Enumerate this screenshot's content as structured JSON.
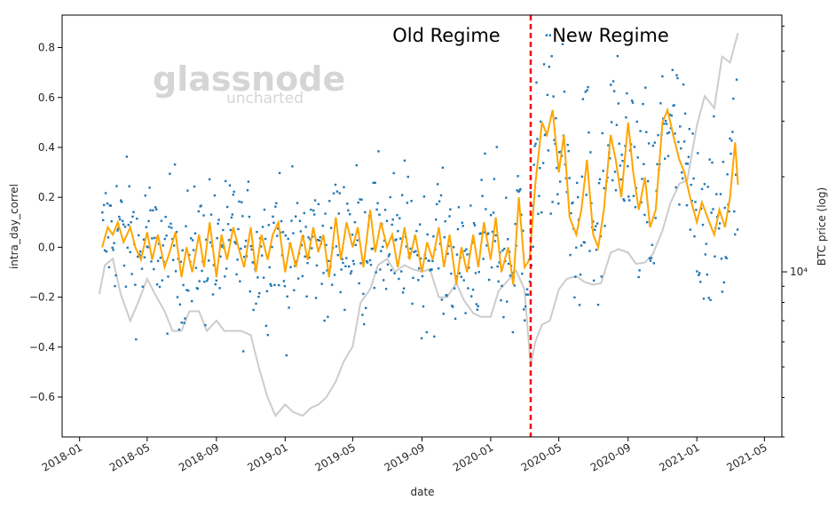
{
  "chart_data": {
    "type": "scatter",
    "xlabel": "date",
    "ylabel": "intra_day_correl",
    "y2label": "BTC price (log)",
    "ylim": [
      -0.76,
      0.93
    ],
    "yticks": [
      "0.8",
      "0.6",
      "0.4",
      "0.2",
      "0.0",
      "−0.2",
      "−0.4",
      "−0.6"
    ],
    "ytick_values": [
      0.8,
      0.6,
      0.4,
      0.2,
      0.0,
      -0.2,
      -0.4,
      -0.6
    ],
    "xticks": [
      "2018-01",
      "2018-05",
      "2018-09",
      "2019-01",
      "2019-05",
      "2019-09",
      "2020-01",
      "2020-05",
      "2020-09",
      "2021-01",
      "2021-05"
    ],
    "xtick_dates": [
      "2018-01-01",
      "2018-05-01",
      "2018-09-01",
      "2019-01-01",
      "2019-05-01",
      "2019-09-01",
      "2020-01-01",
      "2020-05-01",
      "2020-09-01",
      "2021-01-01",
      "2021-05-01"
    ],
    "xlim": [
      "2017-12-01",
      "2021-06-01"
    ],
    "y2_scale": "log",
    "y2lim": [
      3000,
      65000
    ],
    "y2ticks": [
      "10⁴"
    ],
    "y2tick_values": [
      10000
    ],
    "y2_minor_ticks": [
      3000,
      4000,
      5000,
      6000,
      7000,
      8000,
      9000,
      20000,
      30000,
      40000,
      50000,
      60000
    ],
    "grid": false,
    "regime_change_date": "2020-03-12",
    "annotations": [
      "Old Regime",
      "New Regime"
    ],
    "watermark": {
      "main": "glassnode",
      "sub": "uncharted"
    },
    "colors": {
      "scatter": "#1f77b4",
      "rolling": "#ffa500",
      "price": "#cccccc",
      "regime_line": "#ff0000"
    },
    "series": [
      {
        "type": "line",
        "axis": "left",
        "x": [
          "2018-02-10",
          "2018-02-20",
          "2018-03-01",
          "2018-03-10",
          "2018-03-20",
          "2018-04-01",
          "2018-04-10",
          "2018-04-20",
          "2018-05-01",
          "2018-05-10",
          "2018-05-20",
          "2018-06-01",
          "2018-06-10",
          "2018-06-20",
          "2018-07-01",
          "2018-07-10",
          "2018-07-20",
          "2018-08-01",
          "2018-08-10",
          "2018-08-20",
          "2018-09-01",
          "2018-09-10",
          "2018-09-20",
          "2018-10-01",
          "2018-10-10",
          "2018-10-20",
          "2018-11-01",
          "2018-11-10",
          "2018-11-20",
          "2018-12-01",
          "2018-12-10",
          "2018-12-20",
          "2019-01-01",
          "2019-01-10",
          "2019-01-20",
          "2019-02-01",
          "2019-02-10",
          "2019-02-20",
          "2019-03-01",
          "2019-03-10",
          "2019-03-20",
          "2019-04-01",
          "2019-04-10",
          "2019-04-20",
          "2019-05-01",
          "2019-05-10",
          "2019-05-20",
          "2019-06-01",
          "2019-06-10",
          "2019-06-20",
          "2019-07-01",
          "2019-07-10",
          "2019-07-20",
          "2019-08-01",
          "2019-08-10",
          "2019-08-20",
          "2019-09-01",
          "2019-09-10",
          "2019-09-20",
          "2019-10-01",
          "2019-10-10",
          "2019-10-20",
          "2019-11-01",
          "2019-11-10",
          "2019-11-20",
          "2019-12-01",
          "2019-12-10",
          "2019-12-20",
          "2020-01-01",
          "2020-01-10",
          "2020-01-20",
          "2020-02-01",
          "2020-02-10",
          "2020-02-20",
          "2020-03-01",
          "2020-03-10",
          "2020-03-20",
          "2020-04-01",
          "2020-04-10",
          "2020-04-20",
          "2020-05-01",
          "2020-05-10",
          "2020-05-20",
          "2020-06-01",
          "2020-06-10",
          "2020-06-20",
          "2020-07-01",
          "2020-07-10",
          "2020-07-20",
          "2020-08-01",
          "2020-08-10",
          "2020-08-20",
          "2020-09-01",
          "2020-09-10",
          "2020-09-20",
          "2020-10-01",
          "2020-10-10",
          "2020-10-20",
          "2020-11-01",
          "2020-11-10",
          "2020-11-20",
          "2020-12-01",
          "2020-12-10",
          "2020-12-20",
          "2021-01-01",
          "2021-01-10",
          "2021-01-20",
          "2021-02-01",
          "2021-02-10",
          "2021-02-20",
          "2021-03-01",
          "2021-03-10",
          "2021-03-15"
        ],
        "y": [
          0.0,
          0.08,
          0.05,
          0.1,
          0.02,
          0.08,
          0.0,
          -0.05,
          0.06,
          -0.05,
          0.05,
          -0.08,
          -0.02,
          0.06,
          -0.12,
          0.0,
          -0.1,
          0.05,
          -0.08,
          0.1,
          -0.12,
          0.05,
          -0.05,
          0.08,
          0.0,
          -0.08,
          0.08,
          -0.1,
          0.05,
          -0.05,
          0.05,
          0.1,
          -0.1,
          0.02,
          -0.08,
          0.05,
          -0.05,
          0.08,
          -0.02,
          0.05,
          -0.12,
          0.12,
          -0.05,
          0.1,
          0.0,
          0.08,
          -0.08,
          0.15,
          -0.02,
          0.1,
          0.0,
          0.05,
          -0.08,
          0.08,
          -0.05,
          0.05,
          -0.1,
          0.02,
          -0.05,
          0.08,
          -0.08,
          0.05,
          -0.15,
          0.0,
          -0.1,
          0.05,
          -0.08,
          0.1,
          -0.05,
          0.12,
          -0.1,
          0.0,
          -0.15,
          0.2,
          -0.08,
          -0.05,
          0.25,
          0.5,
          0.45,
          0.55,
          0.3,
          0.45,
          0.12,
          0.05,
          0.15,
          0.35,
          0.05,
          0.0,
          0.15,
          0.45,
          0.35,
          0.2,
          0.5,
          0.3,
          0.15,
          0.28,
          0.08,
          0.15,
          0.5,
          0.55,
          0.45,
          0.35,
          0.3,
          0.2,
          0.1,
          0.18,
          0.12,
          0.05,
          0.15,
          0.08,
          0.2,
          0.42,
          0.25
        ]
      },
      {
        "type": "line",
        "axis": "right",
        "x": [
          "2018-02-05",
          "2018-02-15",
          "2018-03-01",
          "2018-03-15",
          "2018-04-01",
          "2018-04-15",
          "2018-05-01",
          "2018-05-15",
          "2018-06-01",
          "2018-06-15",
          "2018-07-01",
          "2018-07-15",
          "2018-08-01",
          "2018-08-15",
          "2018-09-01",
          "2018-09-15",
          "2018-10-01",
          "2018-10-15",
          "2018-11-01",
          "2018-11-15",
          "2018-12-01",
          "2018-12-15",
          "2019-01-01",
          "2019-01-15",
          "2019-02-01",
          "2019-02-15",
          "2019-03-01",
          "2019-03-15",
          "2019-04-01",
          "2019-04-15",
          "2019-05-01",
          "2019-05-15",
          "2019-06-01",
          "2019-06-15",
          "2019-07-01",
          "2019-07-15",
          "2019-08-01",
          "2019-08-15",
          "2019-09-01",
          "2019-09-15",
          "2019-10-01",
          "2019-10-15",
          "2019-11-01",
          "2019-11-15",
          "2019-12-01",
          "2019-12-15",
          "2020-01-01",
          "2020-01-15",
          "2020-02-01",
          "2020-02-15",
          "2020-03-01",
          "2020-03-12",
          "2020-03-20",
          "2020-04-01",
          "2020-04-15",
          "2020-05-01",
          "2020-05-15",
          "2020-06-01",
          "2020-06-15",
          "2020-07-01",
          "2020-07-15",
          "2020-08-01",
          "2020-08-15",
          "2020-09-01",
          "2020-09-15",
          "2020-10-01",
          "2020-10-15",
          "2020-11-01",
          "2020-11-15",
          "2020-12-01",
          "2020-12-15",
          "2021-01-01",
          "2021-01-15",
          "2021-02-01",
          "2021-02-15",
          "2021-03-01",
          "2021-03-15"
        ],
        "y": [
          8500,
          10500,
          11000,
          8500,
          7000,
          8000,
          9500,
          8500,
          7500,
          6500,
          6500,
          7500,
          7500,
          6500,
          7000,
          6500,
          6500,
          6500,
          6300,
          5000,
          4000,
          3500,
          3800,
          3600,
          3500,
          3700,
          3800,
          4000,
          4500,
          5200,
          5800,
          8000,
          8800,
          10500,
          11000,
          10000,
          10500,
          10200,
          10000,
          10200,
          8300,
          8300,
          9200,
          8100,
          7400,
          7200,
          7200,
          8700,
          9400,
          10100,
          8800,
          5000,
          6000,
          6800,
          7000,
          8800,
          9500,
          9700,
          9300,
          9100,
          9200,
          11500,
          11800,
          11500,
          10600,
          10700,
          11400,
          13500,
          16500,
          19000,
          19500,
          29000,
          36000,
          33000,
          48000,
          46000,
          57000
        ]
      }
    ]
  }
}
